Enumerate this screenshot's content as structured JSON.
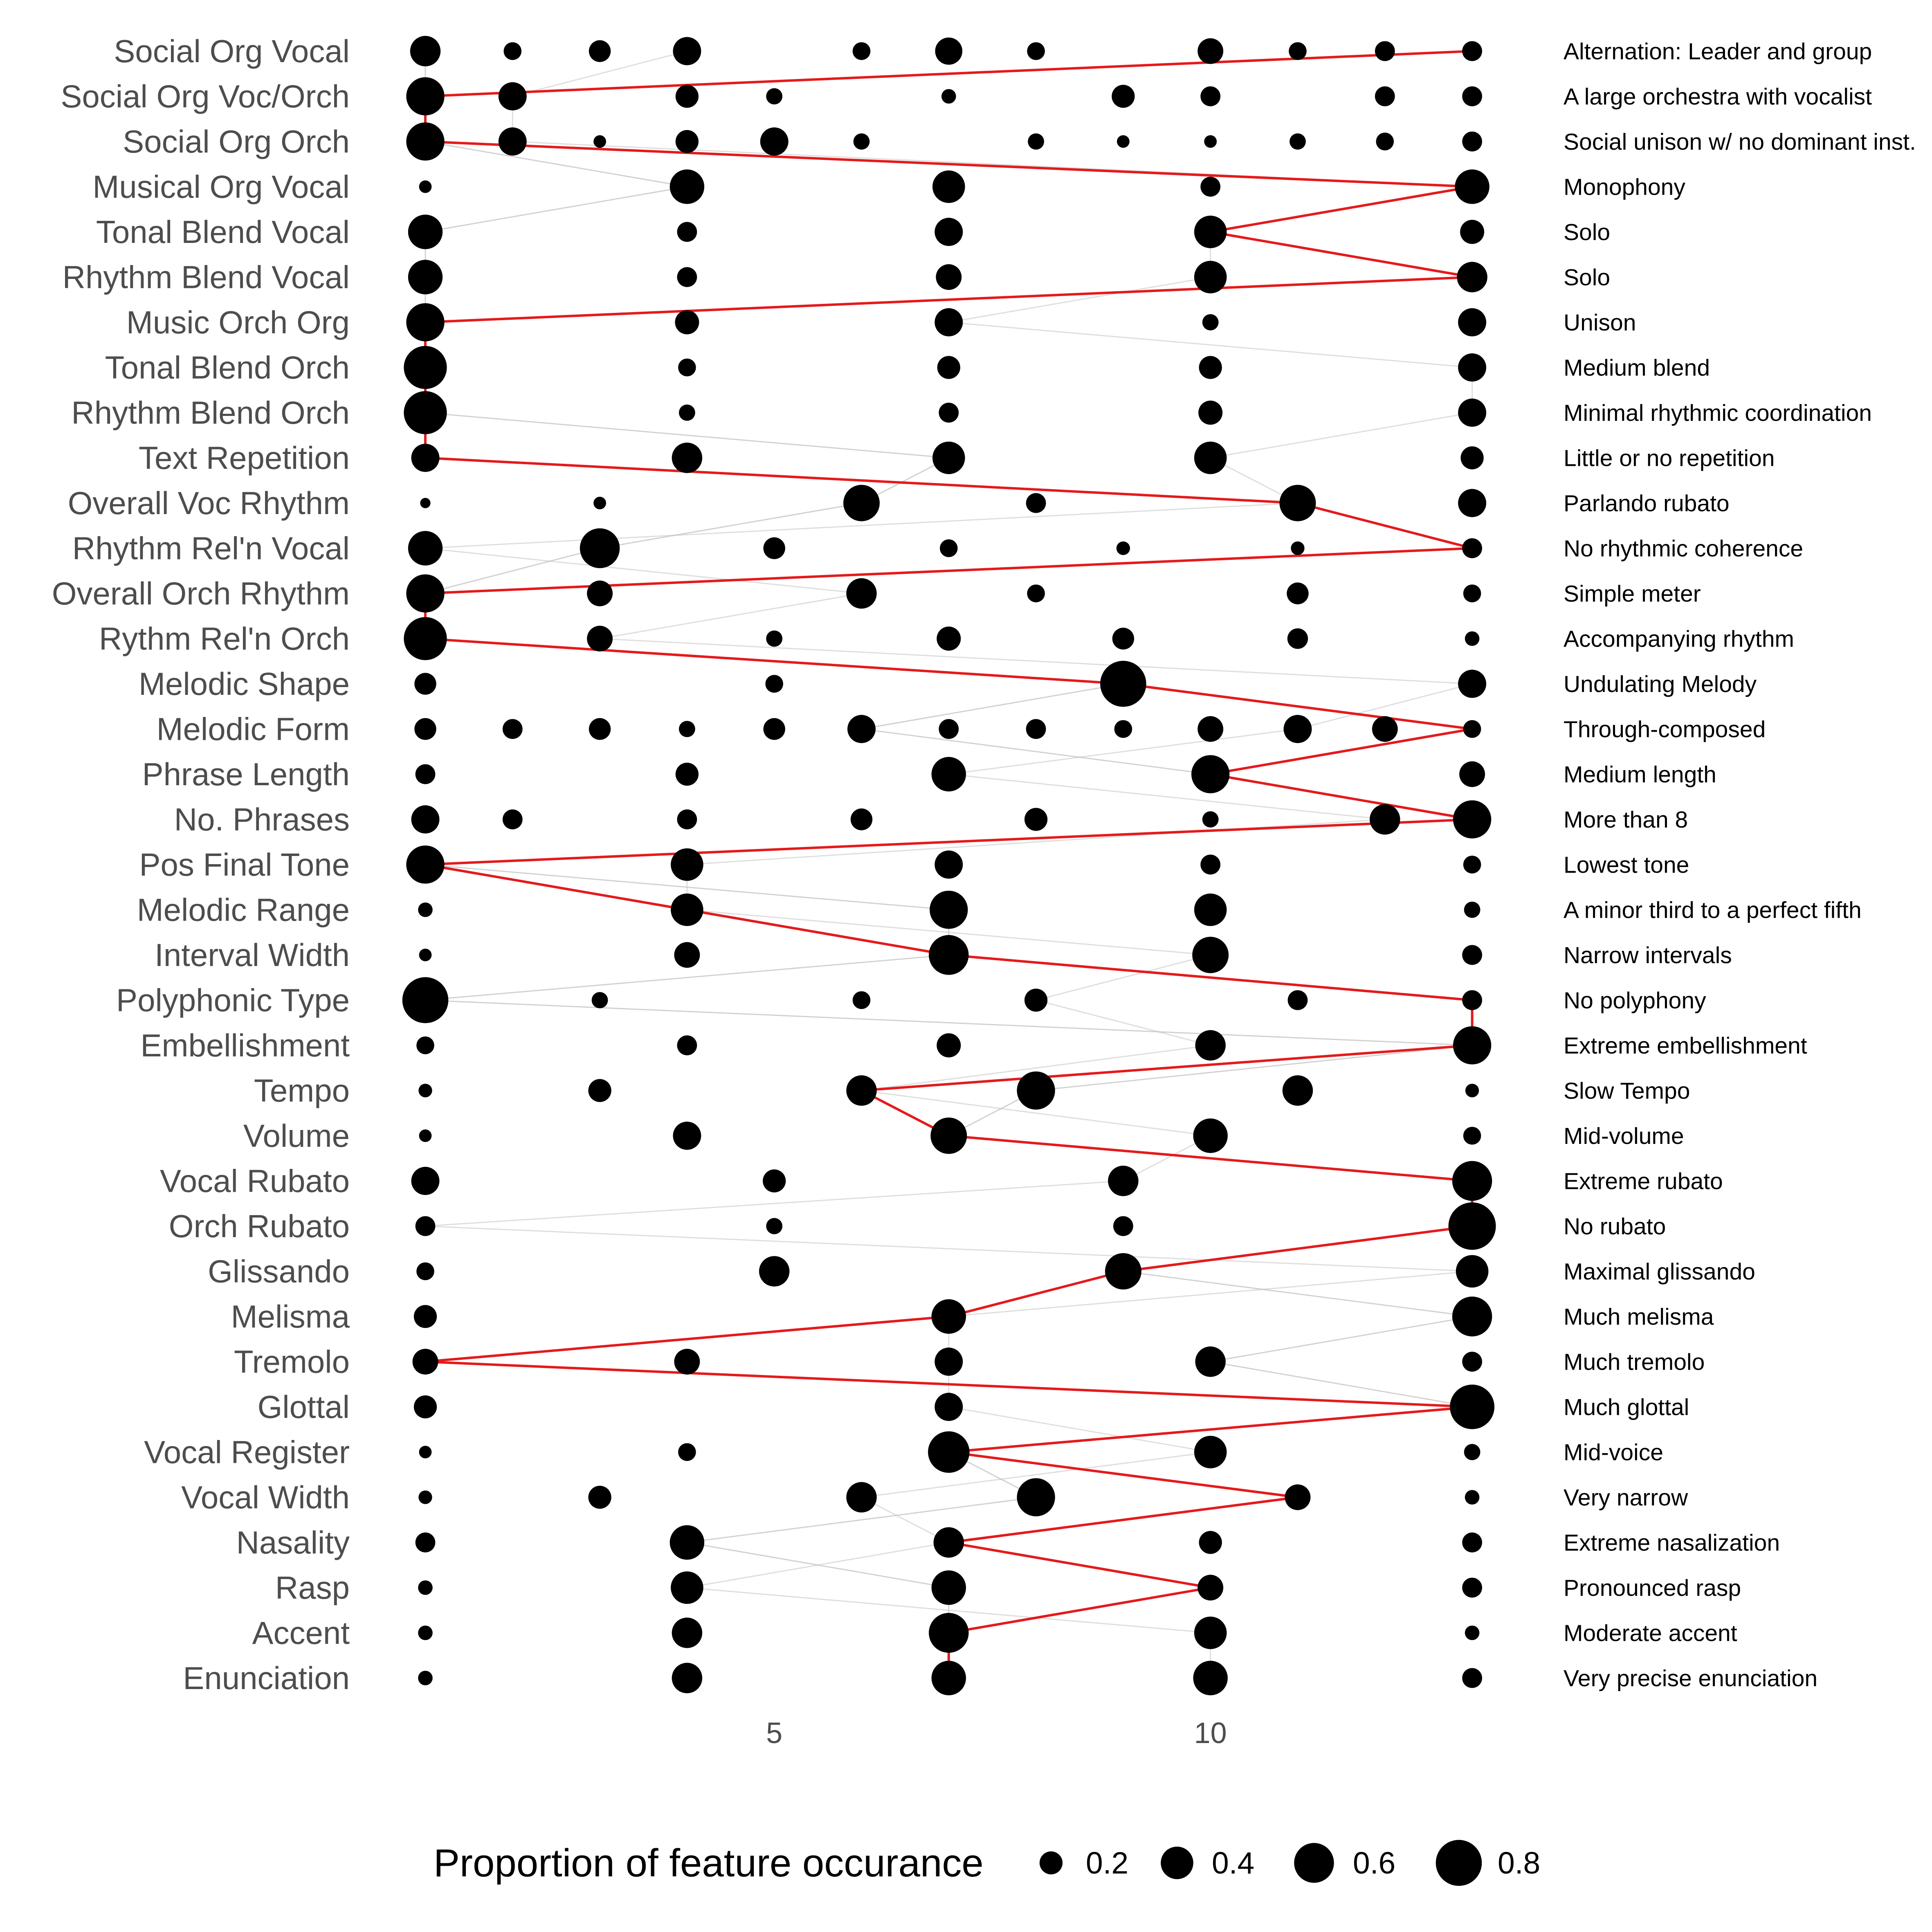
{
  "chart_data": {
    "type": "scatter",
    "xlim": [
      0.5,
      13.5
    ],
    "x_ticks": [
      5,
      10
    ],
    "grid": false,
    "legend": {
      "title": "Proportion of feature occurance",
      "placement": "bottom",
      "sizes": [
        0.2,
        0.4,
        0.6,
        0.8
      ],
      "labels": [
        "0.2",
        "0.4",
        "0.6",
        "0.8"
      ]
    },
    "colors": {
      "point": "#000000",
      "highlight_line": "#e41a1c",
      "background_line": "#bdbdbd"
    },
    "features": [
      {
        "name": "Social Org Vocal",
        "value_label": "Alternation: Leader and group",
        "points": [
          [
            1,
            0.35
          ],
          [
            2,
            0.12
          ],
          [
            3,
            0.18
          ],
          [
            4,
            0.3
          ],
          [
            6,
            0.12
          ],
          [
            7,
            0.28
          ],
          [
            8,
            0.12
          ],
          [
            10,
            0.25
          ],
          [
            11,
            0.12
          ],
          [
            12,
            0.15
          ],
          [
            13,
            0.15
          ]
        ],
        "highlight": 13
      },
      {
        "name": "Social Org Voc/Orch",
        "value_label": "A large orchestra with vocalist",
        "points": [
          [
            1,
            0.55
          ],
          [
            2,
            0.3
          ],
          [
            4,
            0.2
          ],
          [
            5,
            0.1
          ],
          [
            7,
            0.08
          ],
          [
            9,
            0.2
          ],
          [
            10,
            0.15
          ],
          [
            12,
            0.15
          ],
          [
            13,
            0.15
          ]
        ],
        "highlight": 1
      },
      {
        "name": "Social Org Orch",
        "value_label": "Social unison w/ no dominant inst.",
        "points": [
          [
            1,
            0.55
          ],
          [
            2,
            0.3
          ],
          [
            3,
            0.06
          ],
          [
            4,
            0.2
          ],
          [
            5,
            0.3
          ],
          [
            6,
            0.1
          ],
          [
            8,
            0.1
          ],
          [
            9,
            0.06
          ],
          [
            10,
            0.06
          ],
          [
            11,
            0.1
          ],
          [
            12,
            0.12
          ],
          [
            13,
            0.15
          ]
        ],
        "highlight": 1
      },
      {
        "name": "Musical Org Vocal",
        "value_label": "Monophony",
        "points": [
          [
            1,
            0.06
          ],
          [
            4,
            0.45
          ],
          [
            7,
            0.4
          ],
          [
            10,
            0.15
          ],
          [
            13,
            0.45
          ]
        ],
        "highlight": 13
      },
      {
        "name": "Tonal Blend Vocal",
        "value_label": "Solo",
        "points": [
          [
            1,
            0.45
          ],
          [
            4,
            0.15
          ],
          [
            7,
            0.3
          ],
          [
            10,
            0.4
          ],
          [
            13,
            0.22
          ]
        ],
        "highlight": 10
      },
      {
        "name": "Rhythm Blend Vocal",
        "value_label": "Solo",
        "points": [
          [
            1,
            0.45
          ],
          [
            4,
            0.15
          ],
          [
            7,
            0.25
          ],
          [
            10,
            0.4
          ],
          [
            13,
            0.35
          ]
        ],
        "highlight": 13
      },
      {
        "name": "Music Orch Org",
        "value_label": "Unison",
        "points": [
          [
            1,
            0.55
          ],
          [
            4,
            0.22
          ],
          [
            7,
            0.3
          ],
          [
            10,
            0.1
          ],
          [
            13,
            0.3
          ]
        ],
        "highlight": 1
      },
      {
        "name": "Tonal Blend Orch",
        "value_label": "Medium blend",
        "points": [
          [
            1,
            0.7
          ],
          [
            4,
            0.12
          ],
          [
            7,
            0.2
          ],
          [
            10,
            0.2
          ],
          [
            13,
            0.3
          ]
        ],
        "highlight": 1
      },
      {
        "name": "Rhythm Blend Orch",
        "value_label": "Minimal rhythmic coordination",
        "points": [
          [
            1,
            0.7
          ],
          [
            4,
            0.1
          ],
          [
            7,
            0.15
          ],
          [
            10,
            0.22
          ],
          [
            13,
            0.3
          ]
        ],
        "highlight": 1
      },
      {
        "name": "Text Repetition",
        "value_label": "Little or no repetition",
        "points": [
          [
            1,
            0.3
          ],
          [
            4,
            0.35
          ],
          [
            7,
            0.4
          ],
          [
            10,
            0.4
          ],
          [
            13,
            0.2
          ]
        ],
        "highlight": 1
      },
      {
        "name": "Overall Voc Rhythm",
        "value_label": "Parlando rubato",
        "points": [
          [
            1,
            0.04
          ],
          [
            3,
            0.06
          ],
          [
            6,
            0.5
          ],
          [
            8,
            0.15
          ],
          [
            11,
            0.5
          ],
          [
            13,
            0.3
          ]
        ],
        "highlight": 11
      },
      {
        "name": "Rhythm Rel'n Vocal",
        "value_label": "No rhythmic coherence",
        "points": [
          [
            1,
            0.45
          ],
          [
            3,
            0.6
          ],
          [
            5,
            0.18
          ],
          [
            7,
            0.12
          ],
          [
            9,
            0.07
          ],
          [
            11,
            0.07
          ],
          [
            13,
            0.15
          ]
        ],
        "highlight": 13
      },
      {
        "name": "Overall Orch Rhythm",
        "value_label": "Simple meter",
        "points": [
          [
            1,
            0.55
          ],
          [
            3,
            0.25
          ],
          [
            6,
            0.35
          ],
          [
            8,
            0.12
          ],
          [
            11,
            0.18
          ],
          [
            13,
            0.12
          ]
        ],
        "highlight": 1
      },
      {
        "name": "Rythm Rel'n Orch",
        "value_label": "Accompanying rhythm",
        "points": [
          [
            1,
            0.7
          ],
          [
            3,
            0.25
          ],
          [
            5,
            0.1
          ],
          [
            7,
            0.22
          ],
          [
            9,
            0.18
          ],
          [
            11,
            0.16
          ],
          [
            13,
            0.08
          ]
        ],
        "highlight": 1
      },
      {
        "name": "Melodic Shape",
        "value_label": "Undulating Melody",
        "points": [
          [
            1,
            0.18
          ],
          [
            5,
            0.12
          ],
          [
            9,
            0.8
          ],
          [
            13,
            0.3
          ]
        ],
        "highlight": 9
      },
      {
        "name": "Melodic Form",
        "value_label": "Through-composed",
        "points": [
          [
            1,
            0.18
          ],
          [
            2,
            0.15
          ],
          [
            3,
            0.18
          ],
          [
            4,
            0.1
          ],
          [
            5,
            0.18
          ],
          [
            6,
            0.3
          ],
          [
            7,
            0.15
          ],
          [
            8,
            0.15
          ],
          [
            9,
            0.12
          ],
          [
            10,
            0.25
          ],
          [
            11,
            0.3
          ],
          [
            12,
            0.25
          ],
          [
            13,
            0.12
          ]
        ],
        "highlight": 13
      },
      {
        "name": "Phrase Length",
        "value_label": "Medium length",
        "points": [
          [
            1,
            0.15
          ],
          [
            4,
            0.2
          ],
          [
            7,
            0.45
          ],
          [
            10,
            0.55
          ],
          [
            13,
            0.25
          ]
        ],
        "highlight": 10
      },
      {
        "name": "No. Phrases",
        "value_label": "More than 8",
        "points": [
          [
            1,
            0.3
          ],
          [
            2,
            0.15
          ],
          [
            4,
            0.15
          ],
          [
            6,
            0.18
          ],
          [
            8,
            0.2
          ],
          [
            10,
            0.1
          ],
          [
            12,
            0.35
          ],
          [
            13,
            0.55
          ]
        ],
        "highlight": 13
      },
      {
        "name": "Pos Final Tone",
        "value_label": "Lowest tone",
        "points": [
          [
            1,
            0.55
          ],
          [
            4,
            0.4
          ],
          [
            7,
            0.3
          ],
          [
            10,
            0.15
          ],
          [
            13,
            0.12
          ]
        ],
        "highlight": 1
      },
      {
        "name": "Melodic Range",
        "value_label": "A minor third to a perfect fifth",
        "points": [
          [
            1,
            0.08
          ],
          [
            4,
            0.4
          ],
          [
            7,
            0.55
          ],
          [
            10,
            0.4
          ],
          [
            13,
            0.1
          ]
        ],
        "highlight": 4
      },
      {
        "name": "Interval Width",
        "value_label": "Narrow intervals",
        "points": [
          [
            1,
            0.06
          ],
          [
            4,
            0.25
          ],
          [
            7,
            0.6
          ],
          [
            10,
            0.5
          ],
          [
            13,
            0.15
          ]
        ],
        "highlight": 7
      },
      {
        "name": "Polyphonic Type",
        "value_label": "No polyphony",
        "points": [
          [
            1,
            0.8
          ],
          [
            3,
            0.1
          ],
          [
            6,
            0.12
          ],
          [
            8,
            0.2
          ],
          [
            11,
            0.15
          ],
          [
            13,
            0.15
          ]
        ],
        "highlight": 13
      },
      {
        "name": "Embellishment",
        "value_label": "Extreme embellishment",
        "points": [
          [
            1,
            0.12
          ],
          [
            4,
            0.15
          ],
          [
            7,
            0.22
          ],
          [
            10,
            0.35
          ],
          [
            13,
            0.55
          ]
        ],
        "highlight": 13
      },
      {
        "name": "Tempo",
        "value_label": "Slow Tempo",
        "points": [
          [
            1,
            0.07
          ],
          [
            3,
            0.2
          ],
          [
            6,
            0.35
          ],
          [
            8,
            0.55
          ],
          [
            11,
            0.35
          ],
          [
            13,
            0.07
          ]
        ],
        "highlight": 6
      },
      {
        "name": "Volume",
        "value_label": "Mid-volume",
        "points": [
          [
            1,
            0.06
          ],
          [
            4,
            0.3
          ],
          [
            7,
            0.5
          ],
          [
            10,
            0.45
          ],
          [
            13,
            0.12
          ]
        ],
        "highlight": 7
      },
      {
        "name": "Vocal Rubato",
        "value_label": "Extreme rubato",
        "points": [
          [
            1,
            0.3
          ],
          [
            5,
            0.2
          ],
          [
            9,
            0.35
          ],
          [
            13,
            0.6
          ]
        ],
        "highlight": 13
      },
      {
        "name": "Orch Rubato",
        "value_label": "No rubato",
        "points": [
          [
            1,
            0.15
          ],
          [
            5,
            0.1
          ],
          [
            9,
            0.15
          ],
          [
            13,
            0.85
          ]
        ],
        "highlight": 13
      },
      {
        "name": "Glissando",
        "value_label": "Maximal glissando",
        "points": [
          [
            1,
            0.12
          ],
          [
            5,
            0.35
          ],
          [
            9,
            0.5
          ],
          [
            13,
            0.4
          ]
        ],
        "highlight": 9
      },
      {
        "name": "Melisma",
        "value_label": "Much melisma",
        "points": [
          [
            1,
            0.2
          ],
          [
            7,
            0.45
          ],
          [
            13,
            0.6
          ]
        ],
        "highlight": 7
      },
      {
        "name": "Tremolo",
        "value_label": "Much tremolo",
        "points": [
          [
            1,
            0.25
          ],
          [
            4,
            0.25
          ],
          [
            7,
            0.3
          ],
          [
            10,
            0.35
          ],
          [
            13,
            0.15
          ]
        ],
        "highlight": 1
      },
      {
        "name": "Glottal",
        "value_label": "Much glottal",
        "points": [
          [
            1,
            0.2
          ],
          [
            7,
            0.3
          ],
          [
            13,
            0.75
          ]
        ],
        "highlight": 13
      },
      {
        "name": "Vocal Register",
        "value_label": "Mid-voice",
        "points": [
          [
            1,
            0.06
          ],
          [
            4,
            0.12
          ],
          [
            7,
            0.65
          ],
          [
            10,
            0.4
          ],
          [
            13,
            0.1
          ]
        ],
        "highlight": 7
      },
      {
        "name": "Vocal Width",
        "value_label": "Very narrow",
        "points": [
          [
            1,
            0.07
          ],
          [
            3,
            0.2
          ],
          [
            6,
            0.35
          ],
          [
            8,
            0.55
          ],
          [
            11,
            0.25
          ],
          [
            13,
            0.08
          ]
        ],
        "highlight": 11
      },
      {
        "name": "Nasality",
        "value_label": "Extreme nasalization",
        "points": [
          [
            1,
            0.15
          ],
          [
            4,
            0.45
          ],
          [
            7,
            0.35
          ],
          [
            10,
            0.2
          ],
          [
            13,
            0.15
          ]
        ],
        "highlight": 7
      },
      {
        "name": "Rasp",
        "value_label": "Pronounced rasp",
        "points": [
          [
            1,
            0.08
          ],
          [
            4,
            0.4
          ],
          [
            7,
            0.45
          ],
          [
            10,
            0.25
          ],
          [
            13,
            0.15
          ]
        ],
        "highlight": 10
      },
      {
        "name": "Accent",
        "value_label": "Moderate accent",
        "points": [
          [
            1,
            0.08
          ],
          [
            4,
            0.35
          ],
          [
            7,
            0.6
          ],
          [
            10,
            0.4
          ],
          [
            13,
            0.08
          ]
        ],
        "highlight": 7
      },
      {
        "name": "Enunciation",
        "value_label": "Very precise enunciation",
        "points": [
          [
            1,
            0.08
          ],
          [
            4,
            0.35
          ],
          [
            7,
            0.45
          ],
          [
            10,
            0.45
          ],
          [
            13,
            0.15
          ]
        ],
        "highlight": 7
      }
    ]
  }
}
